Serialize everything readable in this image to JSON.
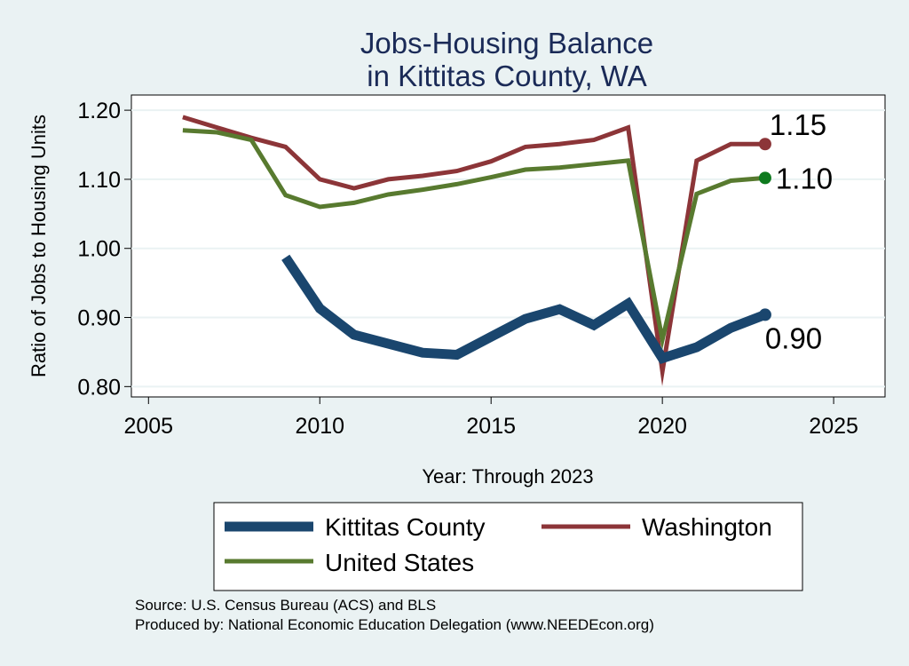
{
  "chart_data": {
    "type": "line",
    "title_lines": [
      "Jobs-Housing Balance",
      "in Kittitas County, WA"
    ],
    "xlabel": "Year: Through 2023",
    "ylabel": "Ratio of Jobs to Housing Units",
    "xlim": [
      2004.5,
      2026.5
    ],
    "ylim": [
      0.785,
      1.222
    ],
    "x_ticks": [
      2005,
      2010,
      2015,
      2020,
      2025
    ],
    "y_ticks": [
      0.8,
      0.9,
      1.0,
      1.1,
      1.2
    ],
    "y_tick_labels": [
      "0.80",
      "0.90",
      "1.00",
      "1.10",
      "1.20"
    ],
    "grid": true,
    "legend_position": "bottom",
    "series": [
      {
        "key": "washington",
        "name": "Washington",
        "color": "#8c3538",
        "x": [
          2006,
          2007,
          2008,
          2009,
          2010,
          2011,
          2012,
          2013,
          2014,
          2015,
          2016,
          2017,
          2018,
          2019,
          2020,
          2021,
          2022,
          2023
        ],
        "values": [
          1.19,
          1.175,
          1.16,
          1.147,
          1.1,
          1.087,
          1.1,
          1.105,
          1.112,
          1.126,
          1.147,
          1.151,
          1.157,
          1.175,
          0.822,
          1.127,
          1.151,
          1.151
        ],
        "end_label": "1.15"
      },
      {
        "key": "united_states",
        "name": "United States",
        "color": "#587a2f",
        "marker_color": "#0e7a1e",
        "x": [
          2006,
          2007,
          2008,
          2009,
          2010,
          2011,
          2012,
          2013,
          2014,
          2015,
          2016,
          2017,
          2018,
          2019,
          2020,
          2021,
          2022,
          2023
        ],
        "values": [
          1.171,
          1.168,
          1.157,
          1.077,
          1.06,
          1.066,
          1.078,
          1.085,
          1.093,
          1.103,
          1.114,
          1.117,
          1.122,
          1.127,
          0.868,
          1.079,
          1.098,
          1.102
        ],
        "end_label": "1.10"
      },
      {
        "key": "kittitas",
        "name": "Kittitas County",
        "color": "#1a466e",
        "x": [
          2009,
          2010,
          2011,
          2012,
          2013,
          2014,
          2015,
          2016,
          2017,
          2018,
          2019,
          2020,
          2021,
          2022,
          2023
        ],
        "values": [
          0.987,
          0.913,
          0.875,
          0.862,
          0.849,
          0.846,
          0.872,
          0.898,
          0.912,
          0.889,
          0.92,
          0.841,
          0.857,
          0.885,
          0.904
        ],
        "end_label": "0.90"
      }
    ],
    "legend": [
      {
        "name": "Kittitas County",
        "color": "#1a466e"
      },
      {
        "name": "Washington",
        "color": "#8c3538"
      },
      {
        "name": "United States",
        "color": "#587a2f"
      }
    ]
  },
  "footer": {
    "source": "Source: U.S. Census Bureau (ACS) and BLS",
    "produced": "Produced by: National Economic Education Delegation (www.NEEDEcon.org)"
  }
}
